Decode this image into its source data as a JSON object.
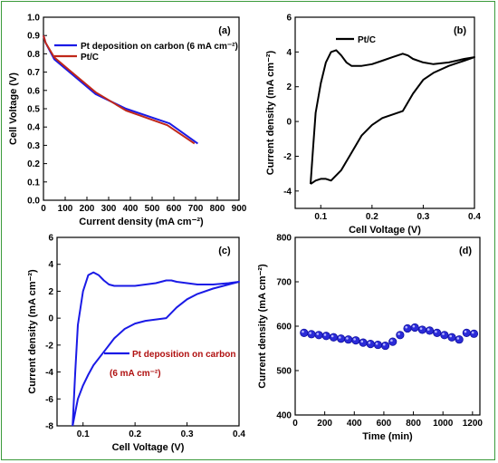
{
  "colors": {
    "blue": "#1a1ae6",
    "red": "#c0281a",
    "black": "#000000",
    "frame": "#3a9a3a",
    "marker": "#2b2bd8"
  },
  "chart_data": [
    {
      "id": "a",
      "type": "line",
      "panel_label": "(a)",
      "xlabel": "Current density (mA cm⁻²)",
      "ylabel": "Cell Voltage (V)",
      "xlim": [
        0,
        900
      ],
      "ylim": [
        0.0,
        1.0
      ],
      "xticks": [
        "0",
        "100",
        "200",
        "300",
        "400",
        "500",
        "600",
        "700",
        "800",
        "900"
      ],
      "yticks": [
        "0.0",
        "0.1",
        "0.2",
        "0.3",
        "0.4",
        "0.5",
        "0.6",
        "0.7",
        "0.8",
        "0.9",
        "1.0"
      ],
      "legend_position": "top-right",
      "series": [
        {
          "name": "Pt deposition on carbon (6 mA cm⁻²)",
          "color": "blue",
          "x": [
            0,
            10,
            50,
            120,
            240,
            380,
            580,
            710
          ],
          "y": [
            0.9,
            0.86,
            0.77,
            0.7,
            0.58,
            0.5,
            0.42,
            0.31
          ]
        },
        {
          "name": "Pt/C",
          "color": "red",
          "x": [
            0,
            10,
            50,
            120,
            240,
            380,
            570,
            695
          ],
          "y": [
            0.9,
            0.86,
            0.78,
            0.71,
            0.59,
            0.49,
            0.41,
            0.31
          ]
        }
      ]
    },
    {
      "id": "b",
      "type": "line",
      "panel_label": "(b)",
      "xlabel": "Cell Voltage (V)",
      "ylabel": "Current density (mA cm⁻²)",
      "xlim": [
        0.05,
        0.4
      ],
      "ylim": [
        -5,
        6
      ],
      "xticks": [
        "0.1",
        "0.2",
        "0.3",
        "0.4"
      ],
      "yticks": [
        "-4",
        "-2",
        "0",
        "2",
        "4",
        "6"
      ],
      "legend_position": "top-left",
      "series": [
        {
          "name": "Pt/C",
          "color": "black",
          "x": [
            0.08,
            0.085,
            0.09,
            0.1,
            0.11,
            0.12,
            0.13,
            0.14,
            0.15,
            0.16,
            0.18,
            0.2,
            0.22,
            0.24,
            0.26,
            0.27,
            0.28,
            0.3,
            0.32,
            0.35,
            0.38,
            0.4,
            0.38,
            0.35,
            0.32,
            0.3,
            0.28,
            0.26,
            0.24,
            0.22,
            0.2,
            0.18,
            0.16,
            0.14,
            0.12,
            0.11,
            0.1,
            0.09,
            0.085,
            0.08
          ],
          "y": [
            -3.6,
            -1.5,
            0.5,
            2.2,
            3.4,
            4.0,
            4.1,
            3.8,
            3.4,
            3.2,
            3.2,
            3.3,
            3.5,
            3.7,
            3.9,
            3.8,
            3.6,
            3.4,
            3.3,
            3.4,
            3.6,
            3.7,
            3.5,
            3.2,
            2.8,
            2.4,
            1.6,
            0.6,
            0.4,
            0.2,
            -0.2,
            -0.8,
            -1.8,
            -2.8,
            -3.4,
            -3.3,
            -3.3,
            -3.4,
            -3.5,
            -3.6
          ]
        }
      ]
    },
    {
      "id": "c",
      "type": "line",
      "panel_label": "(c)",
      "xlabel": "Cell Voltage (V)",
      "ylabel": "Current density (mA cm⁻²)",
      "xlim": [
        0.05,
        0.4
      ],
      "ylim": [
        -8,
        6
      ],
      "xticks": [
        "0.1",
        "0.2",
        "0.3",
        "0.4"
      ],
      "yticks": [
        "-8",
        "-6",
        "-4",
        "-2",
        "0",
        "2",
        "4",
        "6"
      ],
      "legend_position": "bottom-right",
      "series": [
        {
          "name": "Pt deposition on carbon (6 mA cm⁻²)",
          "color": "blue",
          "x": [
            0.08,
            0.085,
            0.09,
            0.1,
            0.11,
            0.12,
            0.13,
            0.14,
            0.15,
            0.16,
            0.18,
            0.2,
            0.22,
            0.24,
            0.26,
            0.27,
            0.28,
            0.3,
            0.32,
            0.35,
            0.38,
            0.4,
            0.38,
            0.35,
            0.32,
            0.3,
            0.28,
            0.26,
            0.24,
            0.22,
            0.2,
            0.18,
            0.16,
            0.14,
            0.12,
            0.11,
            0.1,
            0.09,
            0.085,
            0.08
          ],
          "y": [
            -8.0,
            -4.0,
            -0.5,
            2.0,
            3.2,
            3.4,
            3.2,
            2.8,
            2.5,
            2.4,
            2.4,
            2.4,
            2.5,
            2.6,
            2.8,
            2.8,
            2.7,
            2.6,
            2.5,
            2.5,
            2.6,
            2.7,
            2.5,
            2.2,
            1.8,
            1.4,
            0.8,
            0.0,
            -0.1,
            -0.2,
            -0.4,
            -0.8,
            -1.5,
            -2.5,
            -3.5,
            -4.2,
            -5.0,
            -6.0,
            -7.0,
            -8.0
          ]
        }
      ]
    },
    {
      "id": "d",
      "type": "scatter",
      "panel_label": "(d)",
      "xlabel": "Time (min)",
      "ylabel": "Current density (mA cm⁻²)",
      "xlim": [
        0,
        1250
      ],
      "ylim": [
        400,
        800
      ],
      "xticks": [
        "0",
        "200",
        "400",
        "600",
        "800",
        "1000",
        "1200"
      ],
      "yticks": [
        "400",
        "500",
        "600",
        "700",
        "800"
      ],
      "series": [
        {
          "name": "",
          "color": "marker",
          "x": [
            60,
            110,
            160,
            210,
            260,
            310,
            360,
            410,
            460,
            510,
            560,
            610,
            660,
            710,
            760,
            810,
            860,
            910,
            960,
            1010,
            1060,
            1110,
            1160,
            1210
          ],
          "y": [
            585,
            582,
            580,
            578,
            575,
            572,
            570,
            568,
            563,
            560,
            558,
            556,
            565,
            580,
            595,
            597,
            592,
            590,
            585,
            580,
            575,
            570,
            585,
            583
          ]
        }
      ]
    }
  ]
}
